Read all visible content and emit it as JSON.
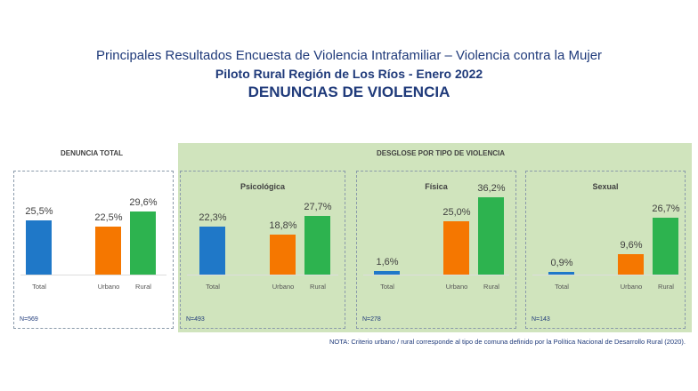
{
  "title": {
    "line1": "Principales Resultados Encuesta de Violencia Intrafamiliar – Violencia contra la Mujer",
    "line2": "Piloto Rural Región de Los Ríos  - Enero 2022",
    "line3": "DENUNCIAS DE VIOLENCIA"
  },
  "section_total": "DENUNCIA TOTAL",
  "section_desglose": "DESGLOSE POR TIPO DE VIOLENCIA",
  "note": "NOTA: Criterio urbano / rural corresponde al tipo de comuna definido por la Política Nacional de Desarrollo Rural (2020).",
  "colors": {
    "Total": "#1f78c8",
    "Urbano": "#f57700",
    "Rural": "#2db34f"
  },
  "chart_data": [
    {
      "type": "bar",
      "title": "",
      "n": "N=569",
      "categories": [
        "Total",
        "Urbano",
        "Rural"
      ],
      "values": [
        25.5,
        22.5,
        29.6
      ],
      "labels": [
        "25,5%",
        "22,5%",
        "29,6%"
      ]
    },
    {
      "type": "bar",
      "title": "Psicológica",
      "n": "N=493",
      "categories": [
        "Total",
        "Urbano",
        "Rural"
      ],
      "values": [
        22.3,
        18.8,
        27.7
      ],
      "labels": [
        "22,3%",
        "18,8%",
        "27,7%"
      ]
    },
    {
      "type": "bar",
      "title": "Física",
      "n": "N=278",
      "categories": [
        "Total",
        "Urbano",
        "Rural"
      ],
      "values": [
        1.6,
        25.0,
        36.2
      ],
      "labels": [
        "1,6%",
        "25,0%",
        "36,2%"
      ]
    },
    {
      "type": "bar",
      "title": "Sexual",
      "n": "N=143",
      "categories": [
        "Total",
        "Urbano",
        "Rural"
      ],
      "values": [
        0.9,
        9.6,
        26.7
      ],
      "labels": [
        "0,9%",
        "9,6%",
        "26,7%"
      ]
    }
  ]
}
